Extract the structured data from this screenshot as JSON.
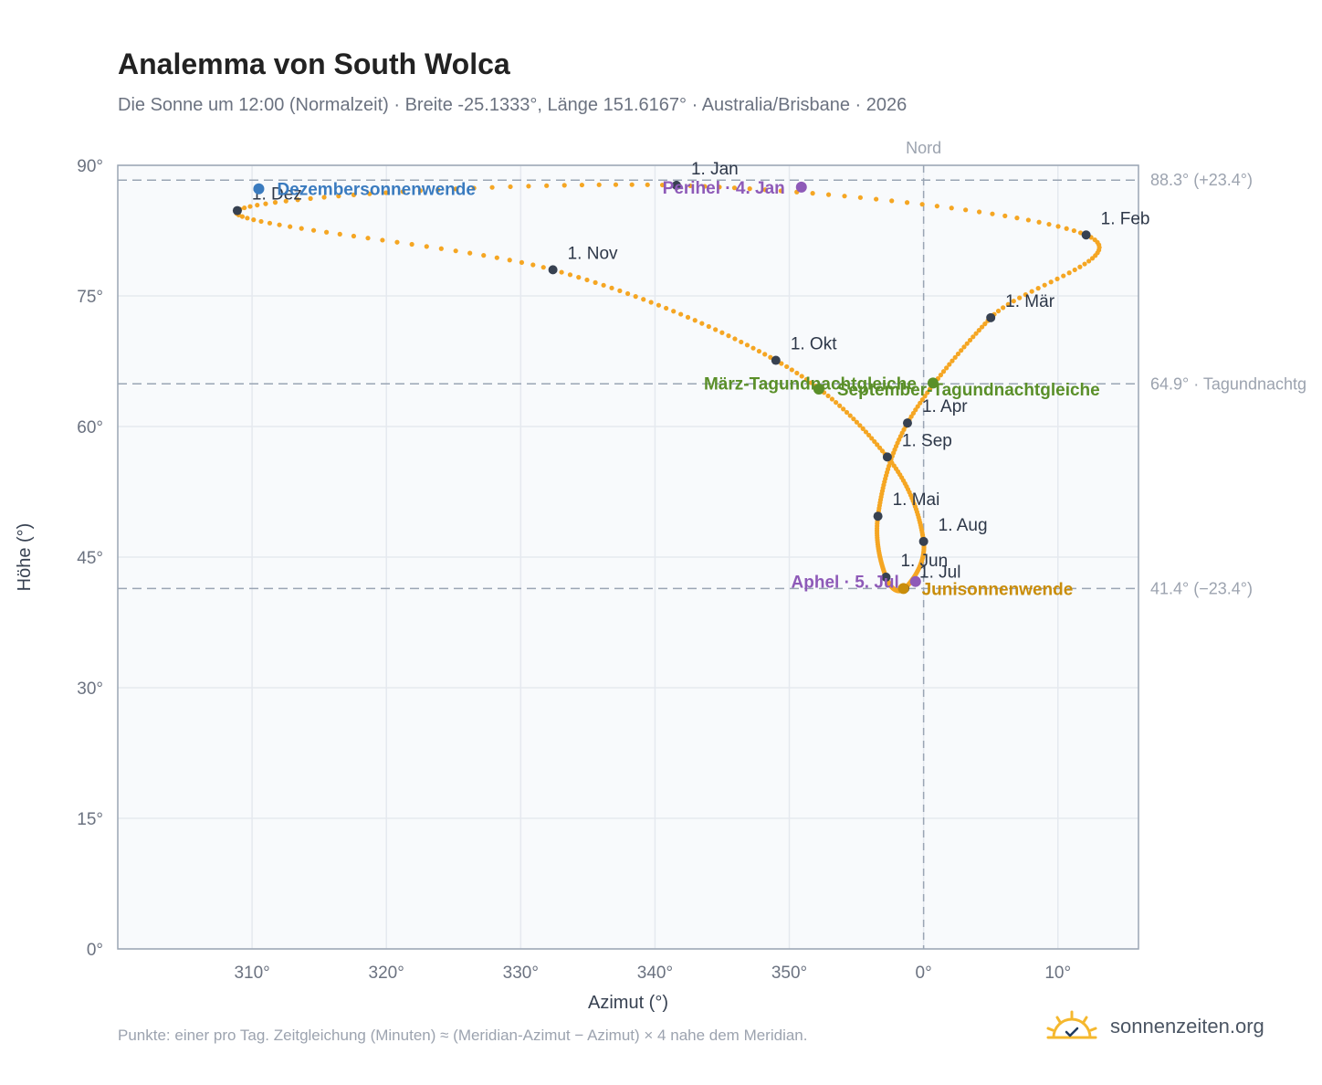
{
  "title": "Analemma von South Wolca",
  "subtitle": "Die Sonne um 12:00 (Normalzeit) · Breite -25.1333°, Länge 151.6167° · Australia/Brisbane · 2026",
  "footnote": "Punkte: einer pro Tag. Zeitgleichung (Minuten) ≈ (Meridian-Azimut − Azimut) × 4 nahe dem Meridian.",
  "brand": {
    "name": "sonnenzeiten.org",
    "icon": "sun-check-icon"
  },
  "colors": {
    "curve": "#f5a623",
    "month_marker": "#374151",
    "december": "#3a7bbf",
    "june": "#c98d0a",
    "equinox": "#5a8f29",
    "orbit": "#8e5ab8",
    "plot_bg": "#f8fafc",
    "grid": "#e5e9ef",
    "axis": "#9aa5b4",
    "ref_text": "#9ca3af"
  },
  "chart_data": {
    "type": "scatter",
    "title": "Analemma von South Wolca",
    "xlabel": "Azimut (°)",
    "ylabel": "Höhe (°)",
    "x_ticks": [
      "310°",
      "320°",
      "330°",
      "340°",
      "350°",
      "0°",
      "10°"
    ],
    "y_ticks": [
      "0°",
      "15°",
      "30°",
      "45°",
      "60°",
      "75°",
      "90°"
    ],
    "ylim": [
      0,
      90
    ],
    "xlim": [
      300,
      376
    ],
    "grid": true,
    "reference_label_north": "Nord",
    "reference_lines": [
      {
        "label": "88.3° (+23.4°)",
        "y": 88.3
      },
      {
        "label": "64.9° · Tagundnachtg",
        "y": 64.9
      },
      {
        "label": "41.4° (−23.4°)",
        "y": 41.4
      }
    ],
    "months": [
      {
        "label": "1. Jan",
        "az": 341.6,
        "alt": 87.7
      },
      {
        "label": "1. Feb",
        "az": 372.1,
        "alt": 82.0
      },
      {
        "label": "1. Mär",
        "az": 365.0,
        "alt": 72.5
      },
      {
        "label": "1. Apr",
        "az": 358.8,
        "alt": 60.4
      },
      {
        "label": "1. Mai",
        "az": 356.6,
        "alt": 49.7
      },
      {
        "label": "1. Jun",
        "az": 357.2,
        "alt": 42.7
      },
      {
        "label": "1. Jul",
        "az": 358.6,
        "alt": 41.4
      },
      {
        "label": "1. Aug",
        "az": 360.0,
        "alt": 46.8
      },
      {
        "label": "1. Sep",
        "az": 357.3,
        "alt": 56.5
      },
      {
        "label": "1. Okt",
        "az": 349.0,
        "alt": 67.6
      },
      {
        "label": "1. Nov",
        "az": 332.4,
        "alt": 78.0
      },
      {
        "label": "1. Dez",
        "az": 308.9,
        "alt": 84.8
      }
    ],
    "events": [
      {
        "label": "Dezembersonnenwende",
        "az": 310.5,
        "alt": 87.3,
        "kind": "december"
      },
      {
        "label": "Perihel · 4. Jan",
        "az": 350.9,
        "alt": 87.5,
        "kind": "orbit"
      },
      {
        "label": "März-Tagundnachtgleiche",
        "az": 360.7,
        "alt": 65.0,
        "kind": "equinox"
      },
      {
        "label": "September-Tagundnachtgleiche",
        "az": 352.2,
        "alt": 64.3,
        "kind": "equinox"
      },
      {
        "label": "Aphel · 5. Jul",
        "az": 359.4,
        "alt": 42.2,
        "kind": "orbit"
      },
      {
        "label": "Junisonnenwende",
        "az": 358.5,
        "alt": 41.4,
        "kind": "june"
      }
    ]
  }
}
